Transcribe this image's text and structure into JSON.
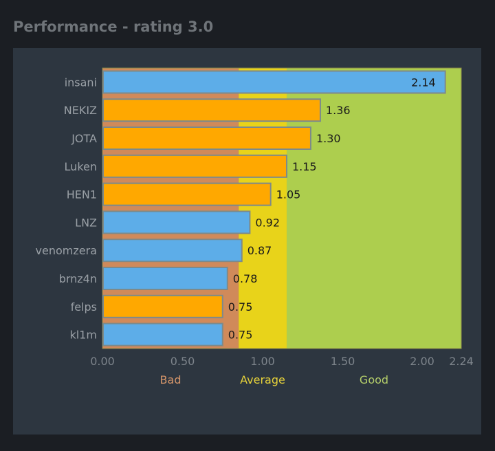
{
  "title": "Performance - rating 3.0",
  "chart_data": {
    "type": "bar",
    "orientation": "horizontal",
    "categories": [
      "insani",
      "NEKIZ",
      "JOTA",
      "Luken",
      "HEN1",
      "LNZ",
      "venomzera",
      "brnz4n",
      "felps",
      "kl1m"
    ],
    "values": [
      2.14,
      1.36,
      1.3,
      1.15,
      1.05,
      0.92,
      0.87,
      0.78,
      0.75,
      0.75
    ],
    "value_labels": [
      "2.14",
      "1.36",
      "1.30",
      "1.15",
      "1.05",
      "0.92",
      "0.87",
      "0.78",
      "0.75",
      "0.75"
    ],
    "bar_colors": [
      "#5dade8",
      "#ffa800",
      "#ffa800",
      "#ffa800",
      "#ffa800",
      "#5dade8",
      "#5dade8",
      "#5dade8",
      "#ffa800",
      "#5dade8"
    ],
    "xlim": [
      0,
      2.24
    ],
    "x_ticks": [
      0,
      0.5,
      1.0,
      1.5,
      2.0,
      2.24
    ],
    "x_tick_labels": [
      "0.00",
      "0.50",
      "1.00",
      "1.50",
      "2.00",
      "2.24"
    ],
    "bands": [
      {
        "label": "Bad",
        "from": 0,
        "to": 0.85,
        "color": "#d08a5a",
        "label_color": "#d4956a"
      },
      {
        "label": "Average",
        "from": 0.85,
        "to": 1.15,
        "color": "#e8d31a",
        "label_color": "#e6d23a"
      },
      {
        "label": "Good",
        "from": 1.15,
        "to": 2.24,
        "color": "#adce4e",
        "label_color": "#b5cf6a"
      }
    ],
    "grid": false
  }
}
